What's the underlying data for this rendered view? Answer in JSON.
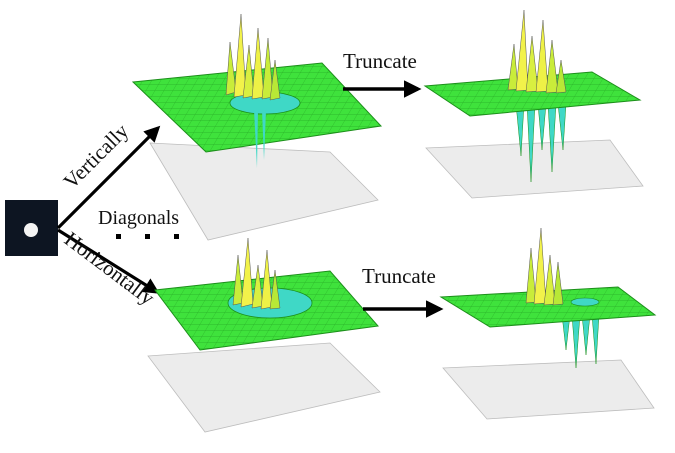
{
  "labels": {
    "vertically": "Vertically",
    "horizontally": "Horizontally",
    "diagonals": "Diagonals",
    "truncate_top": "Truncate",
    "truncate_bottom": "Truncate"
  },
  "colors": {
    "surface": "#3fe23c",
    "surface_dark": "#28b826",
    "peak_light": "#f2f24a",
    "peak_mid": "#c9ec3a",
    "trough": "#3fd8c6",
    "shadow_plane": "#ececec",
    "arrow": "#000000",
    "thumb_bg": "#0d1522",
    "thumb_dot": "#f4f4f4"
  }
}
